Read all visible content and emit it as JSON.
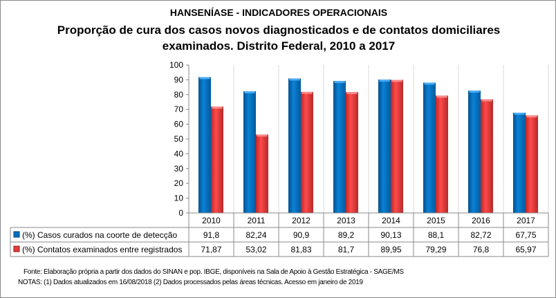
{
  "header": {
    "title": "HANSENÍASE - INDICADORES OPERACIONAIS",
    "subtitle_line1": "Proporção de cura dos casos novos diagnosticados e de contatos domiciliares",
    "subtitle_line2": "examinados.  Distrito Federal, 2010 a 2017"
  },
  "chart_data": {
    "type": "bar",
    "title": "Proporção de cura dos casos novos diagnosticados e de contatos domiciliares examinados.  Distrito Federal, 2010 a 2017",
    "categories": [
      "2010",
      "2011",
      "2012",
      "2013",
      "2014",
      "2015",
      "2016",
      "2017"
    ],
    "series": [
      {
        "name": "(%) Casos curados na coorte de detecção",
        "color": "#0070C0",
        "values": [
          91.8,
          82.24,
          90.9,
          89.2,
          90.13,
          88.1,
          82.72,
          67.75
        ],
        "labels": [
          "91,8",
          "82,24",
          "90,9",
          "89,2",
          "90,13",
          "88,1",
          "82,72",
          "67,75"
        ]
      },
      {
        "name": "(%) Contatos examinados entre registrados",
        "color": "#E83A3A",
        "values": [
          71.87,
          53.02,
          81.83,
          81.7,
          89.95,
          79.29,
          76.8,
          65.97
        ],
        "labels": [
          "71,87",
          "53,02",
          "81,83",
          "81,7",
          "89,95",
          "79,29",
          "76,8",
          "65,97"
        ]
      }
    ],
    "ylim": [
      0,
      100
    ],
    "yticks": [
      "0",
      "10",
      "20",
      "30",
      "40",
      "50",
      "60",
      "70",
      "80",
      "90",
      "100"
    ],
    "data_table": true
  },
  "notes": {
    "source": "Fonte:  Elaboração própria a partir dos dados do  SINAN  e  pop. IBGE, disponíveis na Sala de Apoio à Gestão Estratégica - SAGE/MS",
    "notes": "NOTAS: (1) Dados atualizados em 16/08/2018 (2) Dados processados pelas áreas técnicas. Acesso em janeiro de 2019"
  }
}
